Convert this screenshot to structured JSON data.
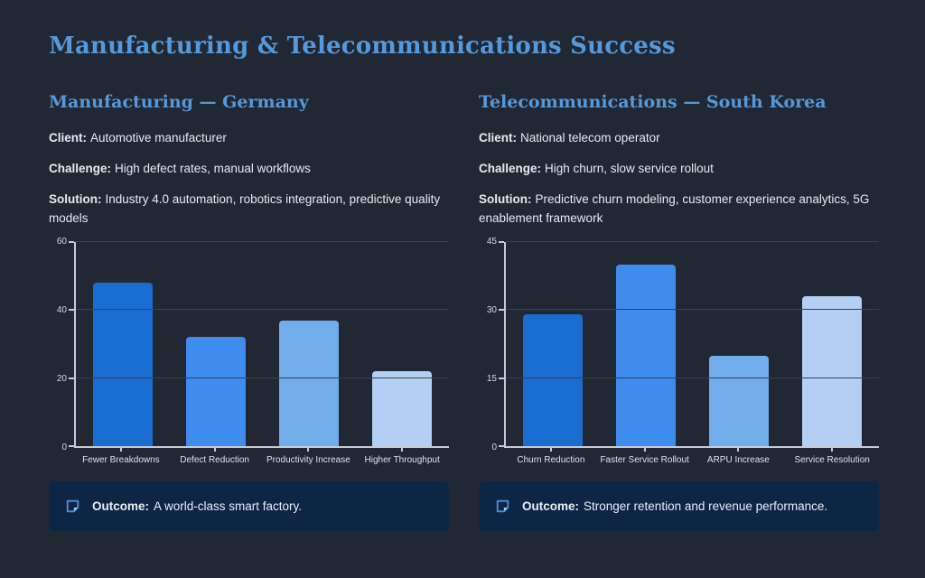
{
  "page": {
    "title": "Manufacturing & Telecommunications Success"
  },
  "colors": {
    "background": "#212733",
    "heading_blue": "#5599da",
    "body_text": "#e8eaee",
    "outcome_box_bg": "#0d2645",
    "outcome_icon_blue": "#4e8fd5",
    "axis": "#c6cbd3",
    "gridline": "#3a4150",
    "bar_palette": [
      "#1a6dd0",
      "#3e8cee",
      "#72adeb",
      "#b1d0f3"
    ]
  },
  "columns": [
    {
      "heading": "Manufacturing — Germany",
      "fields": [
        {
          "label": "Client:",
          "text": "Automotive manufacturer"
        },
        {
          "label": "Challenge:",
          "text": "High defect rates, manual workflows"
        },
        {
          "label": "Solution:",
          "text": "Industry 4.0 automation, robotics integration, predictive quality models"
        }
      ],
      "outcome": {
        "label": "Outcome:",
        "text": "A world-class smart factory."
      }
    },
    {
      "heading": "Telecommunications — South Korea",
      "fields": [
        {
          "label": "Client:",
          "text": "National telecom operator"
        },
        {
          "label": "Challenge:",
          "text": "High churn, slow service rollout"
        },
        {
          "label": "Solution:",
          "text": "Predictive churn modeling, customer experience analytics, 5G enablement framework"
        }
      ],
      "outcome": {
        "label": "Outcome:",
        "text": "Stronger retention and revenue performance."
      }
    }
  ],
  "chart_data": [
    {
      "type": "bar",
      "title": "",
      "xlabel": "",
      "ylabel": "",
      "categories": [
        "Fewer Breakdowns",
        "Defect Reduction",
        "Productivity Increase",
        "Higher Throughput"
      ],
      "values": [
        48,
        32,
        37,
        22
      ],
      "ylim": [
        0,
        60
      ],
      "yticks": [
        0,
        20,
        40,
        60
      ],
      "bar_colors": [
        "#1a6dd0",
        "#3e8cee",
        "#72adeb",
        "#b1d0f3"
      ],
      "grid": true,
      "legend": false
    },
    {
      "type": "bar",
      "title": "",
      "xlabel": "",
      "ylabel": "",
      "categories": [
        "Churn Reduction",
        "Faster Service Rollout",
        "ARPU Increase",
        "Service Resolution"
      ],
      "values": [
        29,
        40,
        20,
        33
      ],
      "ylim": [
        0,
        45
      ],
      "yticks": [
        0,
        15,
        30,
        45
      ],
      "bar_colors": [
        "#1a6dd0",
        "#3e8cee",
        "#72adeb",
        "#b1d0f3"
      ],
      "grid": true,
      "legend": false
    }
  ]
}
